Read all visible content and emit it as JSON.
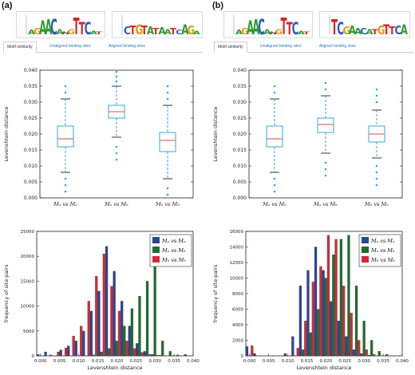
{
  "panels": [
    {
      "label": "(a)",
      "logos": [
        {
          "letters": [
            {
              "ch": "A",
              "color": "#2e9b2e",
              "h": 0.25
            },
            {
              "ch": "G",
              "color": "#e39a17",
              "h": 0.35
            },
            {
              "ch": "A",
              "color": "#2e9b2e",
              "h": 0.8
            },
            {
              "ch": "A",
              "color": "#2e9b2e",
              "h": 0.85
            },
            {
              "ch": "C",
              "color": "#2a5dbf",
              "h": 0.9
            },
            {
              "ch": "A",
              "color": "#2e9b2e",
              "h": 0.3
            },
            {
              "ch": "N",
              "color": "#555555",
              "h": 0.15
            },
            {
              "ch": "G",
              "color": "#e39a17",
              "h": 0.3
            },
            {
              "ch": "T",
              "color": "#d62728",
              "h": 0.95
            },
            {
              "ch": "T",
              "color": "#d62728",
              "h": 0.7
            },
            {
              "ch": "C",
              "color": "#2a5dbf",
              "h": 0.7
            },
            {
              "ch": "A",
              "color": "#2e9b2e",
              "h": 0.2
            },
            {
              "ch": "T",
              "color": "#d62728",
              "h": 0.15
            }
          ]
        },
        {
          "letters": [
            {
              "ch": "C",
              "color": "#2a5dbf",
              "h": 0.45
            },
            {
              "ch": "T",
              "color": "#d62728",
              "h": 0.5
            },
            {
              "ch": "G",
              "color": "#e39a17",
              "h": 0.55
            },
            {
              "ch": "T",
              "color": "#d62728",
              "h": 0.5
            },
            {
              "ch": "A",
              "color": "#2e9b2e",
              "h": 0.45
            },
            {
              "ch": "T",
              "color": "#d62728",
              "h": 0.35
            },
            {
              "ch": "A",
              "color": "#2e9b2e",
              "h": 0.4
            },
            {
              "ch": "A",
              "color": "#2e9b2e",
              "h": 0.3
            },
            {
              "ch": "T",
              "color": "#d62728",
              "h": 0.35
            },
            {
              "ch": "C",
              "color": "#2a5dbf",
              "h": 0.25
            },
            {
              "ch": "A",
              "color": "#2e9b2e",
              "h": 0.55
            },
            {
              "ch": "G",
              "color": "#e39a17",
              "h": 0.5
            },
            {
              "ch": "A",
              "color": "#2e9b2e",
              "h": 0.2
            }
          ]
        }
      ],
      "tabs": [
        "Motif similarity",
        "Unaligned binding sites",
        "Aligned binding sites"
      ]
    },
    {
      "label": "(b)",
      "logos": [
        {
          "letters": [
            {
              "ch": "A",
              "color": "#2e9b2e",
              "h": 0.25
            },
            {
              "ch": "G",
              "color": "#e39a17",
              "h": 0.35
            },
            {
              "ch": "A",
              "color": "#2e9b2e",
              "h": 0.8
            },
            {
              "ch": "A",
              "color": "#2e9b2e",
              "h": 0.85
            },
            {
              "ch": "C",
              "color": "#2a5dbf",
              "h": 0.9
            },
            {
              "ch": "A",
              "color": "#2e9b2e",
              "h": 0.3
            },
            {
              "ch": "N",
              "color": "#555555",
              "h": 0.15
            },
            {
              "ch": "G",
              "color": "#e39a17",
              "h": 0.3
            },
            {
              "ch": "T",
              "color": "#d62728",
              "h": 0.95
            },
            {
              "ch": "T",
              "color": "#d62728",
              "h": 0.7
            },
            {
              "ch": "C",
              "color": "#2a5dbf",
              "h": 0.7
            },
            {
              "ch": "A",
              "color": "#2e9b2e",
              "h": 0.2
            },
            {
              "ch": "T",
              "color": "#d62728",
              "h": 0.15
            }
          ]
        },
        {
          "letters": [
            {
              "ch": "T",
              "color": "#d62728",
              "h": 0.85
            },
            {
              "ch": "C",
              "color": "#2a5dbf",
              "h": 0.7
            },
            {
              "ch": "G",
              "color": "#e39a17",
              "h": 0.45
            },
            {
              "ch": "A",
              "color": "#2e9b2e",
              "h": 0.5
            },
            {
              "ch": "A",
              "color": "#2e9b2e",
              "h": 0.35
            },
            {
              "ch": "C",
              "color": "#2a5dbf",
              "h": 0.35
            },
            {
              "ch": "A",
              "color": "#2e9b2e",
              "h": 0.3
            },
            {
              "ch": "T",
              "color": "#d62728",
              "h": 0.3
            },
            {
              "ch": "G",
              "color": "#e39a17",
              "h": 0.5
            },
            {
              "ch": "T",
              "color": "#d62728",
              "h": 0.55
            },
            {
              "ch": "T",
              "color": "#d62728",
              "h": 0.45
            },
            {
              "ch": "C",
              "color": "#2a5dbf",
              "h": 0.5
            },
            {
              "ch": "A",
              "color": "#2e9b2e",
              "h": 0.55
            }
          ]
        }
      ],
      "tabs": [
        "Motif similarity",
        "Unaligned binding sites",
        "Aligned binding sites"
      ]
    }
  ],
  "colors": {
    "box": "#33a8d8",
    "median": "#e08a8a",
    "whisker_cap": "#555555",
    "blue": "#2a4598",
    "green": "#1d6f2c",
    "red": "#cf2b3a"
  },
  "chart_data": [
    {
      "type": "box",
      "panel": "(a)",
      "ylabel": "Levenshtein distance",
      "ylim": [
        0.0,
        0.04
      ],
      "yticks": [
        "0.000",
        "0.005",
        "0.010",
        "0.015",
        "0.020",
        "0.025",
        "0.030",
        "0.035",
        "0.040"
      ],
      "categories": [
        "Mₒ vs Mₒ",
        "Mₒ vs Mₕ",
        "Mₕ vs Mₕ"
      ],
      "boxes": [
        {
          "whislo": 0.008,
          "q1": 0.016,
          "med": 0.0185,
          "q3": 0.0225,
          "whishi": 0.031,
          "fliers": [
            0.002,
            0.004,
            0.006,
            0.033,
            0.035
          ]
        },
        {
          "whislo": 0.019,
          "q1": 0.025,
          "med": 0.027,
          "q3": 0.029,
          "whishi": 0.035,
          "fliers": [
            0.012,
            0.014,
            0.016,
            0.0365,
            0.038,
            0.0395
          ]
        },
        {
          "whislo": 0.006,
          "q1": 0.0145,
          "med": 0.018,
          "q3": 0.0205,
          "whishi": 0.029,
          "fliers": [
            0.001,
            0.003,
            0.031,
            0.033,
            0.035
          ]
        }
      ]
    },
    {
      "type": "box",
      "panel": "(b)",
      "ylabel": "Levenshtein distance",
      "ylim": [
        0.0,
        0.04
      ],
      "yticks": [
        "0.000",
        "0.005",
        "0.010",
        "0.015",
        "0.020",
        "0.025",
        "0.030",
        "0.035",
        "0.040"
      ],
      "categories": [
        "Mₒ vs Mₒ",
        "Mₒ vs Mₕ",
        "Mₕ vs Mₕ"
      ],
      "boxes": [
        {
          "whislo": 0.008,
          "q1": 0.016,
          "med": 0.0185,
          "q3": 0.0225,
          "whishi": 0.031,
          "fliers": [
            0.002,
            0.004,
            0.006,
            0.033,
            0.035
          ]
        },
        {
          "whislo": 0.014,
          "q1": 0.0205,
          "med": 0.023,
          "q3": 0.025,
          "whishi": 0.032,
          "fliers": [
            0.007,
            0.009,
            0.011,
            0.034,
            0.036
          ]
        },
        {
          "whislo": 0.0125,
          "q1": 0.0175,
          "med": 0.02,
          "q3": 0.0225,
          "whishi": 0.0275,
          "fliers": [
            0.004,
            0.006,
            0.008,
            0.01,
            0.03,
            0.032,
            0.034
          ]
        }
      ]
    },
    {
      "type": "bar",
      "panel": "(a)",
      "xlabel": "Levenshtein distance",
      "ylabel": "frequency of site-pairs",
      "xlim": [
        -0.001,
        0.04
      ],
      "ylim": [
        0,
        25000
      ],
      "xticks": [
        "0.000",
        "0.005",
        "0.010",
        "0.015",
        "0.020",
        "0.025",
        "0.030",
        "0.035",
        "0.040"
      ],
      "yticks": [
        "0",
        "5000",
        "10000",
        "15000",
        "20000",
        "25000"
      ],
      "x": [
        0.0,
        0.002,
        0.004,
        0.006,
        0.008,
        0.01,
        0.012,
        0.014,
        0.016,
        0.018,
        0.02,
        0.022,
        0.024,
        0.026,
        0.028,
        0.03,
        0.032,
        0.034,
        0.036,
        0.038
      ],
      "series": [
        {
          "name": "Mₒ vs Mₒ",
          "color_key": "blue",
          "values": [
            300,
            800,
            0,
            1200,
            2000,
            3000,
            5000,
            9000,
            13000,
            22000,
            17000,
            11000,
            6000,
            2500,
            900,
            300,
            100,
            0,
            0,
            0
          ]
        },
        {
          "name": "Mₒ vs Mₕ",
          "color_key": "green",
          "values": [
            0,
            0,
            0,
            0,
            0,
            0,
            0,
            200,
            800,
            1500,
            3000,
            6000,
            9500,
            12000,
            15000,
            20000,
            3000,
            900,
            200,
            300
          ]
        },
        {
          "name": "Mₕ vs Mₕ",
          "color_key": "red",
          "values": [
            0,
            200,
            800,
            1600,
            4000,
            6000,
            11000,
            16000,
            20500,
            14000,
            9000,
            3000,
            1500,
            700,
            300,
            150,
            0,
            0,
            0,
            0
          ]
        }
      ],
      "legend": "top-right"
    },
    {
      "type": "bar",
      "panel": "(b)",
      "xlabel": "Levenshtein distance",
      "ylabel": "frequency of site-pairs",
      "xlim": [
        -0.001,
        0.04
      ],
      "ylim": [
        0,
        16000
      ],
      "xticks": [
        "0.000",
        "0.005",
        "0.010",
        "0.015",
        "0.020",
        "0.025",
        "0.030",
        "0.035",
        "0.040"
      ],
      "yticks": [
        "0",
        "2000",
        "4000",
        "6000",
        "8000",
        "10000",
        "12000",
        "14000",
        "16000"
      ],
      "x": [
        0.0,
        0.002,
        0.004,
        0.006,
        0.008,
        0.01,
        0.012,
        0.014,
        0.016,
        0.018,
        0.02,
        0.022,
        0.024,
        0.026,
        0.028,
        0.03,
        0.032,
        0.034,
        0.036,
        0.038
      ],
      "series": [
        {
          "name": "Mₒ vs Mₒ",
          "color_key": "blue",
          "values": [
            1200,
            300,
            0,
            0,
            0,
            300,
            2500,
            9000,
            11000,
            14000,
            11000,
            7000,
            4500,
            2500,
            800,
            300,
            100,
            0,
            0,
            0
          ]
        },
        {
          "name": "Mₒ vs Mₕ",
          "color_key": "green",
          "values": [
            0,
            0,
            0,
            0,
            0,
            0,
            0,
            800,
            3000,
            6000,
            10000,
            13000,
            15000,
            15500,
            9000,
            4500,
            2000,
            600,
            200,
            0
          ]
        },
        {
          "name": "Mₕ vs Mₕ",
          "color_key": "red",
          "values": [
            1300,
            0,
            0,
            0,
            0,
            0,
            1000,
            4500,
            9500,
            11500,
            15500,
            15000,
            9000,
            5500,
            2000,
            800,
            200,
            0,
            0,
            0
          ]
        }
      ],
      "legend": "top-right"
    }
  ]
}
